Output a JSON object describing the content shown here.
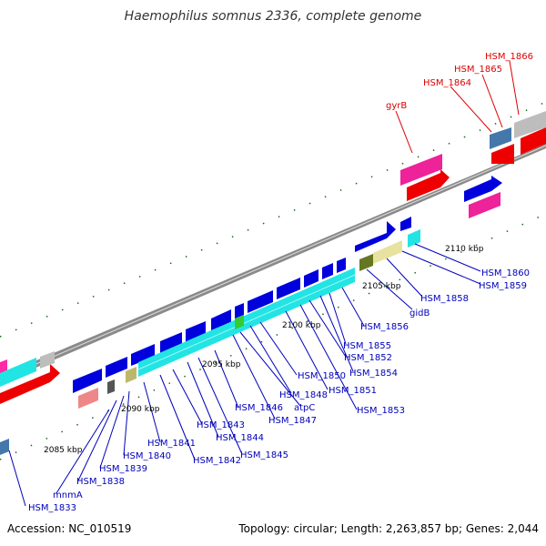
{
  "title": "Haemophilus somnus 2336, complete genome",
  "footer": {
    "accession": "Accession: NC_010519",
    "topology": "Topology: circular; Length: 2,263,857 bp; Genes: 2,044"
  },
  "colors": {
    "blue": "#0000dd",
    "cyan": "#22e4e4",
    "red": "#ee0000",
    "magenta": "#ee2299",
    "green_tick": "#006600",
    "label_blue": "#0000bb",
    "label_red": "#dd0000"
  },
  "kbp_labels": [
    "2085 kbp",
    "2090 kbp",
    "2095 kbp",
    "2100 kbp",
    "2105 kbp",
    "2110 kbp"
  ],
  "labels_reverse": [
    "HSM_1864",
    "HSM_1865",
    "HSM_1866",
    "gyrB"
  ],
  "labels_forward": [
    "HSM_1833",
    "mnmA",
    "HSM_1838",
    "HSM_1839",
    "HSM_1840",
    "HSM_1841",
    "HSM_1842",
    "HSM_1843",
    "HSM_1844",
    "HSM_1845",
    "HSM_1846",
    "atpC",
    "HSM_1847",
    "HSM_1848",
    "HSM_1850",
    "HSM_1851",
    "HSM_1852",
    "HSM_1853",
    "HSM_1854",
    "HSM_1855",
    "HSM_1856",
    "gidB",
    "HSM_1858",
    "HSM_1859",
    "HSM_1860"
  ]
}
